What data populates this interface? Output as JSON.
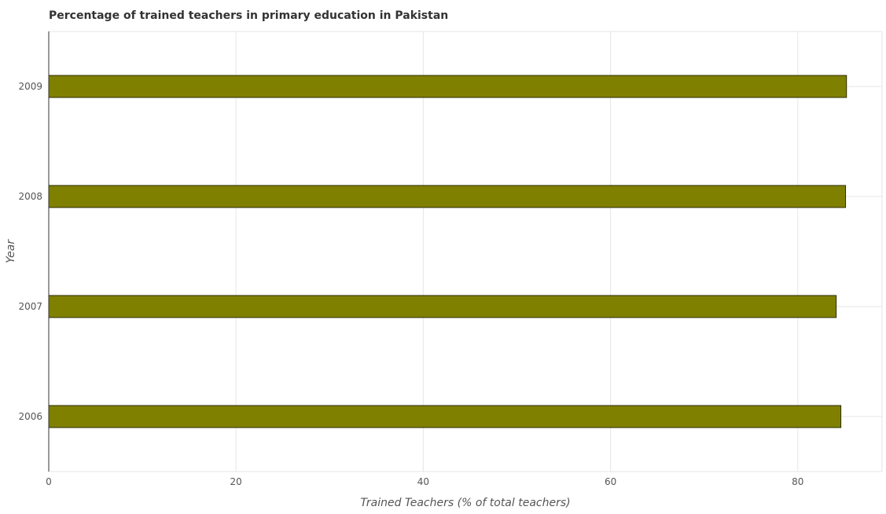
{
  "chart_data": {
    "type": "bar",
    "orientation": "horizontal",
    "title": "Percentage of trained teachers in primary education in Pakistan",
    "xlabel": "Trained Teachers (% of total teachers)",
    "ylabel": "Year",
    "categories": [
      "2006",
      "2007",
      "2008",
      "2009"
    ],
    "values": [
      84.6,
      84.1,
      85.1,
      85.2
    ],
    "xlim": [
      0,
      89
    ],
    "xticks": [
      0,
      20,
      40,
      60,
      80
    ],
    "grid": true,
    "bar_color": "#808000",
    "bar_edge_color": "#2a2a00"
  }
}
